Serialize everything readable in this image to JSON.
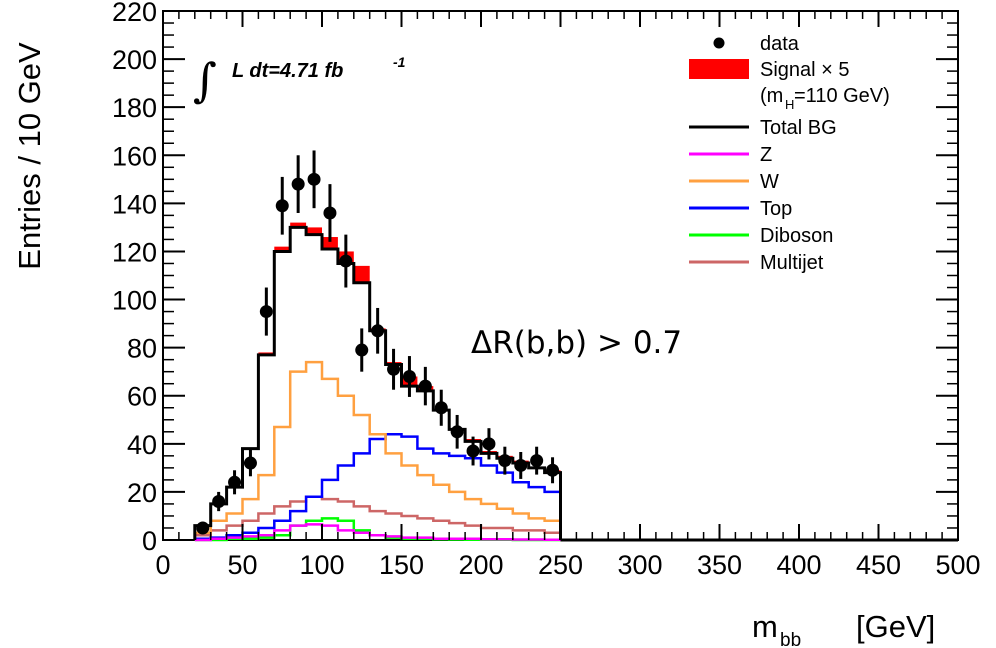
{
  "chart_data": {
    "type": "line",
    "title": "",
    "xlabel": {
      "main": "m",
      "sub": "bb",
      "unit": "[GeV]"
    },
    "ylabel": "Entries / 10 GeV",
    "xlim": [
      0,
      500
    ],
    "ylim": [
      0,
      220
    ],
    "x_ticks": [
      "0",
      "50",
      "100",
      "150",
      "200",
      "250",
      "300",
      "350",
      "400",
      "450",
      "500"
    ],
    "y_ticks": [
      "0",
      "20",
      "40",
      "60",
      "80",
      "100",
      "120",
      "140",
      "160",
      "180",
      "200",
      "220"
    ],
    "grid": false,
    "legend_position": "top-right",
    "luminosity": {
      "integral": "∫",
      "text": "L dt=4.71 fb",
      "sup": "-1"
    },
    "cut_label": "ΔR(b,b) > 0.7",
    "bin_edges": [
      20,
      30,
      40,
      50,
      60,
      70,
      80,
      90,
      100,
      110,
      120,
      130,
      140,
      150,
      160,
      170,
      180,
      190,
      200,
      210,
      220,
      230,
      240,
      250
    ],
    "signal": {
      "name": "Signal × 5",
      "name_line2": "(m",
      "name_sub": "H",
      "name_tail": "=110 GeV)",
      "color": "#ff0000",
      "top": [
        6,
        15,
        22,
        38,
        78,
        122,
        132,
        130,
        126,
        120,
        114,
        88,
        74,
        68,
        64,
        54,
        46,
        42,
        37,
        35,
        33,
        30,
        29
      ]
    },
    "series": [
      {
        "name": "Total BG",
        "color": "#000000",
        "values": [
          6,
          15,
          22,
          38,
          77,
          120,
          130,
          127,
          121,
          115,
          107,
          87,
          73,
          64,
          62,
          54,
          46,
          41,
          36,
          34,
          32,
          30,
          28
        ]
      },
      {
        "name": "Z",
        "color": "#ff00ff",
        "values": [
          0,
          0.5,
          1,
          1.5,
          2,
          4,
          6,
          6.5,
          6,
          4,
          3,
          2,
          1.5,
          1,
          1,
          0.5,
          0.5,
          0.5,
          0.3,
          0.3,
          0.2,
          0.2,
          0.1
        ]
      },
      {
        "name": "W",
        "color": "#ffa040",
        "values": [
          3,
          8,
          11,
          17,
          27,
          47,
          70,
          74,
          67,
          60,
          52,
          44,
          36,
          31,
          27,
          23,
          20,
          17,
          15,
          13,
          11,
          9,
          8
        ]
      },
      {
        "name": "Top",
        "color": "#0000ff",
        "values": [
          0.5,
          1,
          2,
          3,
          5,
          8,
          12,
          18,
          25,
          31,
          36,
          42,
          44,
          43,
          38,
          36,
          35,
          34,
          31,
          28,
          24,
          22,
          20
        ]
      },
      {
        "name": "Diboson",
        "color": "#00ff00",
        "values": [
          0,
          0,
          0.5,
          0.5,
          1,
          2,
          6,
          8,
          9,
          8,
          4,
          2,
          1,
          0.5,
          0.5,
          0.3,
          0.2,
          0.1,
          0.1,
          0.1,
          0,
          0,
          0
        ]
      },
      {
        "name": "Multijet",
        "color": "#cd6666",
        "values": [
          2,
          4,
          6,
          8,
          11,
          14,
          16,
          18,
          17,
          16,
          14,
          12,
          11,
          10,
          9,
          8,
          7,
          6,
          5,
          5,
          4,
          4,
          3
        ]
      }
    ],
    "data": {
      "name": "data",
      "color": "#000000",
      "x": [
        25,
        35,
        45,
        55,
        65,
        75,
        85,
        95,
        105,
        115,
        125,
        135,
        145,
        155,
        165,
        175,
        185,
        195,
        205,
        215,
        225,
        235,
        245
      ],
      "y": [
        5,
        16,
        24,
        32,
        95,
        139,
        148,
        150,
        136,
        116,
        79,
        87,
        71,
        68,
        64,
        55,
        45,
        37,
        40,
        33,
        31,
        33,
        29
      ],
      "err": [
        2.5,
        4,
        5,
        5.5,
        10,
        12,
        12,
        12,
        12,
        11,
        9,
        9.5,
        8.5,
        8.5,
        8,
        7.5,
        7,
        6,
        6.5,
        5.8,
        5.6,
        5.8,
        5.4
      ]
    }
  }
}
